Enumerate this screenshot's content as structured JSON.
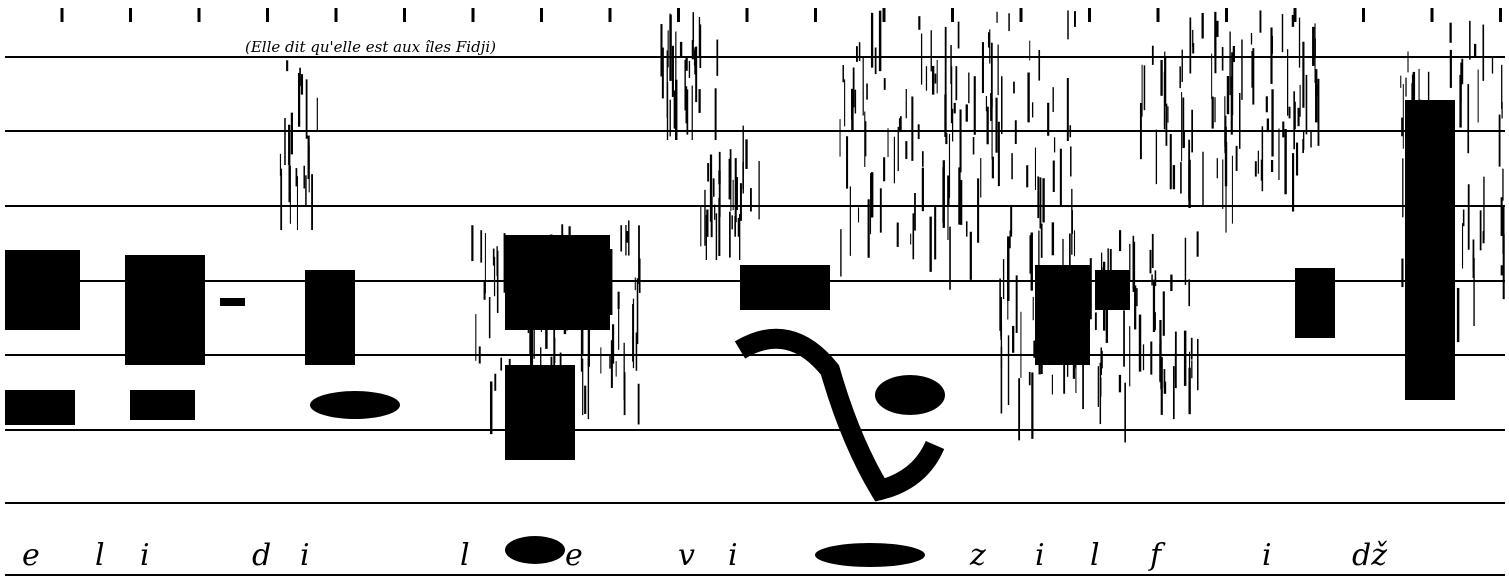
{
  "annotation": "(Elle dit qu'elle est aux îles Fidji)",
  "segments": [
    "e",
    "l",
    "i",
    "d",
    "i",
    "l",
    "e",
    "v",
    "i",
    "z",
    "i",
    "l",
    "f",
    "i",
    "dž"
  ]
}
